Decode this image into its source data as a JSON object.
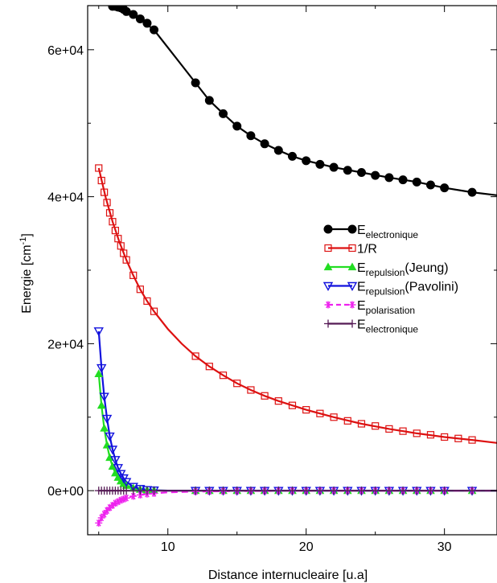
{
  "chart_data": {
    "type": "line",
    "title": "",
    "xlabel": "Distance internucleaire [u.a]",
    "ylabel": "Energie [cm-1]",
    "ylabel_main": "Energie [cm",
    "ylabel_sup": "-1",
    "ylabel_end": "]",
    "xlim": [
      4.2,
      33.8
    ],
    "ylim": [
      -6000,
      66000
    ],
    "x_ticks": [
      10,
      20,
      30
    ],
    "x_tick_labels": [
      "10",
      "20",
      "30"
    ],
    "y_ticks": [
      0,
      20000,
      40000,
      60000
    ],
    "y_tick_labels": [
      "0e+00",
      "2e+04",
      "4e+04",
      "6e+04"
    ],
    "grid": false,
    "legend_position": "right",
    "series": [
      {
        "name": "Eelectronique",
        "legend_main": "E",
        "legend_sub": "electronique",
        "legend_after": "",
        "color": "#000000",
        "marker": "filled-circle",
        "dash": "",
        "x": [
          6.0,
          6.2,
          6.4,
          6.6,
          6.8,
          7.0,
          7.5,
          8.0,
          8.5,
          9.0,
          12.0,
          13.0,
          14.0,
          15.0,
          16.0,
          17.0,
          18.0,
          19.0,
          20.0,
          21.0,
          22.0,
          23.0,
          24.0,
          25.0,
          26.0,
          27.0,
          28.0,
          29.0,
          30.0,
          32.0
        ],
        "y": [
          65900,
          65900,
          65800,
          65700,
          65500,
          65200,
          64800,
          64200,
          63600,
          62700,
          55500,
          53100,
          51300,
          49600,
          48300,
          47200,
          46300,
          45500,
          44900,
          44400,
          44000,
          43600,
          43300,
          42900,
          42600,
          42300,
          42000,
          41600,
          41200,
          40600
        ],
        "curve_x": [
          6.0,
          7.0,
          8.0,
          9.0,
          10.0,
          11.0,
          12.0,
          13.0,
          14.0,
          15.0,
          16.0,
          17.0,
          18.0,
          19.0,
          20.0,
          22.0,
          24.0,
          26.0,
          28.0,
          30.0,
          32.0,
          33.8
        ],
        "curve_y": [
          65900,
          65200,
          64200,
          62700,
          60300,
          57900,
          55500,
          53100,
          51300,
          49600,
          48300,
          47200,
          46300,
          45500,
          44900,
          44000,
          43300,
          42600,
          42000,
          41200,
          40600,
          40200
        ]
      },
      {
        "name": "1/R",
        "legend_main": "1/R",
        "legend_sub": "",
        "legend_after": "",
        "color": "#dd1111",
        "marker": "open-square",
        "dash": "",
        "x": [
          5.0,
          5.2,
          5.4,
          5.6,
          5.8,
          6.0,
          6.2,
          6.4,
          6.6,
          6.8,
          7.0,
          7.5,
          8.0,
          8.5,
          9.0,
          12.0,
          13.0,
          14.0,
          15.0,
          16.0,
          17.0,
          18.0,
          19.0,
          20.0,
          21.0,
          22.0,
          23.0,
          24.0,
          25.0,
          26.0,
          27.0,
          28.0,
          29.0,
          30.0,
          31.0,
          32.0
        ],
        "y": [
          43900,
          42200,
          40600,
          39200,
          37800,
          36600,
          35400,
          34300,
          33300,
          32300,
          31400,
          29300,
          27400,
          25800,
          24400,
          18300,
          16900,
          15700,
          14600,
          13700,
          12900,
          12200,
          11600,
          11000,
          10500,
          10000,
          9500,
          9100,
          8800,
          8400,
          8100,
          7800,
          7600,
          7300,
          7100,
          6900
        ],
        "curve_x": [
          5.0,
          5.5,
          6.0,
          6.5,
          7.0,
          7.5,
          8.0,
          8.5,
          9.0,
          10.0,
          11.0,
          12.0,
          13.0,
          14.0,
          15.0,
          16.0,
          17.0,
          18.0,
          20.0,
          22.0,
          24.0,
          26.0,
          28.0,
          30.0,
          32.0,
          33.8
        ],
        "curve_y": [
          43900,
          39900,
          36600,
          33800,
          31400,
          29300,
          27400,
          25800,
          24400,
          22000,
          20000,
          18300,
          16900,
          15700,
          14600,
          13700,
          12900,
          12200,
          11000,
          10000,
          9100,
          8400,
          7800,
          7300,
          6900,
          6500
        ]
      },
      {
        "name": "Erepulsion(Jeung)",
        "legend_main": "E",
        "legend_sub": "repulsion",
        "legend_after": "(Jeung)",
        "color": "#22dd22",
        "marker": "filled-triangle-up",
        "dash": "",
        "x": [
          5.0,
          5.2,
          5.4,
          5.6,
          5.8,
          6.0,
          6.2,
          6.4,
          6.6,
          6.8,
          7.0,
          7.5,
          8.0,
          8.5,
          9.0,
          12.0,
          13.0,
          14.0,
          15.0,
          16.0,
          17.0,
          18.0,
          19.0,
          20.0,
          21.0,
          22.0,
          23.0,
          24.0,
          25.0,
          26.0,
          27.0,
          28.0,
          29.0,
          30.0,
          32.0
        ],
        "y": [
          15900,
          11600,
          8500,
          6200,
          4500,
          3300,
          2400,
          1800,
          1300,
          950,
          700,
          350,
          170,
          80,
          40,
          0,
          0,
          0,
          0,
          0,
          0,
          0,
          0,
          0,
          0,
          0,
          0,
          0,
          0,
          0,
          0,
          0,
          0,
          0,
          0
        ],
        "curve_x": [
          5.0,
          5.2,
          5.4,
          5.6,
          5.8,
          6.0,
          6.2,
          6.4,
          6.6,
          6.8,
          7.0,
          7.5,
          8.0,
          8.5,
          9.0,
          10.0,
          12.0,
          33.8
        ],
        "curve_y": [
          15900,
          11600,
          8500,
          6200,
          4500,
          3300,
          2400,
          1800,
          1300,
          950,
          700,
          350,
          170,
          80,
          40,
          10,
          0,
          0
        ]
      },
      {
        "name": "Erepulsion(Pavolini)",
        "legend_main": "E",
        "legend_sub": "repulsion",
        "legend_after": "(Pavolini)",
        "color": "#1111dd",
        "marker": "open-triangle-down",
        "dash": "",
        "x": [
          5.0,
          5.2,
          5.4,
          5.6,
          5.8,
          6.0,
          6.2,
          6.4,
          6.6,
          6.8,
          7.0,
          7.5,
          8.0,
          8.5,
          9.0,
          12.0,
          13.0,
          14.0,
          15.0,
          16.0,
          17.0,
          18.0,
          19.0,
          20.0,
          21.0,
          22.0,
          23.0,
          24.0,
          25.0,
          26.0,
          27.0,
          28.0,
          29.0,
          30.0,
          32.0
        ],
        "y": [
          21700,
          16700,
          12800,
          9800,
          7400,
          5600,
          4200,
          3100,
          2300,
          1700,
          1200,
          550,
          250,
          110,
          50,
          0,
          0,
          0,
          0,
          0,
          0,
          0,
          0,
          0,
          0,
          0,
          0,
          0,
          0,
          0,
          0,
          0,
          0,
          0,
          0
        ],
        "curve_x": [
          5.0,
          5.2,
          5.4,
          5.6,
          5.8,
          6.0,
          6.2,
          6.4,
          6.6,
          6.8,
          7.0,
          7.5,
          8.0,
          8.5,
          9.0,
          10.0,
          12.0,
          33.8
        ],
        "curve_y": [
          21700,
          16700,
          12800,
          9800,
          7400,
          5600,
          4200,
          3100,
          2300,
          1700,
          1200,
          550,
          250,
          110,
          50,
          10,
          0,
          0
        ]
      },
      {
        "name": "Epolarisation",
        "legend_main": "E",
        "legend_sub": "polarisation",
        "legend_after": "",
        "color": "#ee22ee",
        "marker": "asterisk",
        "dash": "8,5",
        "x": [
          5.0,
          5.2,
          5.4,
          5.6,
          5.8,
          6.0,
          6.2,
          6.4,
          6.6,
          6.8,
          7.0,
          7.5,
          8.0,
          8.5,
          9.0,
          12.0,
          13.0,
          14.0,
          15.0,
          16.0,
          17.0,
          18.0,
          19.0,
          20.0,
          21.0,
          22.0,
          23.0,
          24.0,
          25.0,
          26.0,
          27.0,
          28.0,
          29.0,
          30.0,
          32.0
        ],
        "y": [
          -4400,
          -3700,
          -3200,
          -2700,
          -2300,
          -2000,
          -1700,
          -1500,
          -1300,
          -1150,
          -1000,
          -750,
          -580,
          -450,
          -360,
          -120,
          -90,
          -70,
          -55,
          -45,
          -35,
          -30,
          -25,
          -20,
          -17,
          -14,
          -12,
          -10,
          -9,
          -8,
          -7,
          -6,
          -5,
          -4,
          -3
        ],
        "curve_x": [
          5.0,
          5.2,
          5.4,
          5.6,
          5.8,
          6.0,
          6.2,
          6.4,
          6.6,
          6.8,
          7.0,
          7.5,
          8.0,
          8.5,
          9.0,
          10.0,
          12.0,
          14.0,
          16.0,
          20.0,
          33.8
        ],
        "curve_y": [
          -4400,
          -3700,
          -3200,
          -2700,
          -2300,
          -2000,
          -1700,
          -1500,
          -1300,
          -1150,
          -1000,
          -750,
          -580,
          -450,
          -360,
          -220,
          -120,
          -70,
          -45,
          -20,
          0
        ]
      },
      {
        "name": "Eelectronique",
        "legend_main": "E",
        "legend_sub": "electronique",
        "legend_after": "",
        "color": "#551a55",
        "marker": "plus",
        "dash": "",
        "x": [
          5.0,
          5.2,
          5.4,
          5.6,
          5.8,
          6.0,
          6.2,
          6.4,
          6.6,
          6.8,
          7.0,
          7.5,
          8.0,
          8.5,
          9.0,
          12.0,
          13.0,
          14.0,
          15.0,
          16.0,
          17.0,
          18.0,
          19.0,
          20.0,
          21.0,
          22.0,
          23.0,
          24.0,
          25.0,
          26.0,
          27.0,
          28.0,
          29.0,
          30.0,
          32.0
        ],
        "y": [
          0,
          0,
          0,
          0,
          0,
          0,
          0,
          0,
          0,
          0,
          0,
          0,
          0,
          0,
          0,
          0,
          0,
          0,
          0,
          0,
          0,
          0,
          0,
          0,
          0,
          0,
          0,
          0,
          0,
          0,
          0,
          0,
          0,
          0,
          0
        ],
        "curve_x": [
          5.0,
          33.8
        ],
        "curve_y": [
          0,
          0
        ]
      }
    ]
  }
}
